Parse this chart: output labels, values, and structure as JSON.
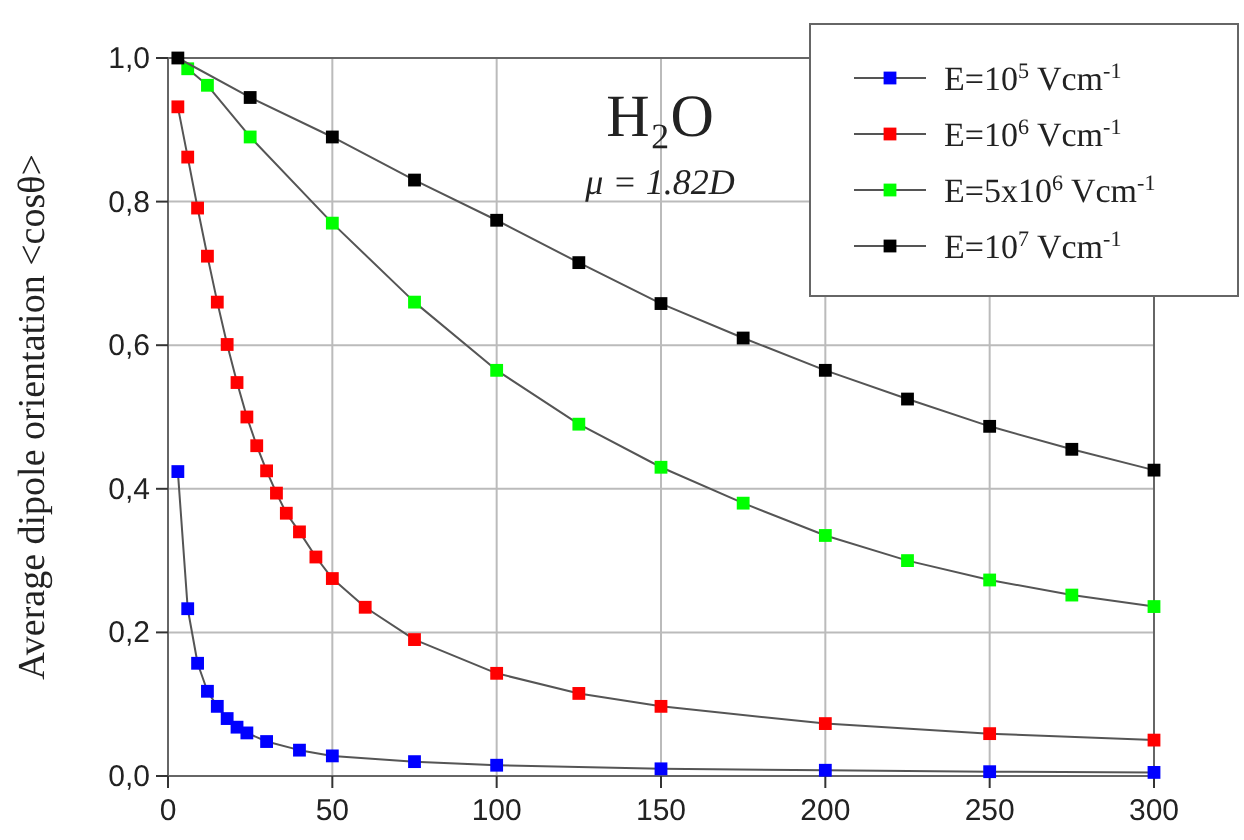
{
  "chart_data": {
    "type": "line",
    "title": "H₂O",
    "subtitle": "μ = 1.82D",
    "ylabel": "Average dipole orientation <cosθ>",
    "xlim": [
      0,
      300
    ],
    "ylim": [
      0,
      1.0
    ],
    "xticks": [
      0,
      50,
      100,
      150,
      200,
      250,
      300
    ],
    "yticks": [
      {
        "value": 0,
        "label": "0,0"
      },
      {
        "value": 0.2,
        "label": "0,2"
      },
      {
        "value": 0.4,
        "label": "0,4"
      },
      {
        "value": 0.6,
        "label": "0,6"
      },
      {
        "value": 0.8,
        "label": "0,8"
      },
      {
        "value": 1.0,
        "label": "1,0"
      }
    ],
    "grid": true,
    "legend": "top right",
    "marker": "square",
    "line_style": "solid",
    "series": [
      {
        "name": "E=10$^{5}$ Vcm$^{-1}$",
        "color": "#0000ff",
        "x": [
          3,
          6,
          9,
          12,
          15,
          18,
          21,
          24,
          30,
          40,
          50,
          75,
          100,
          150,
          200,
          250,
          300
        ],
        "values": [
          0.424,
          0.233,
          0.157,
          0.118,
          0.097,
          0.08,
          0.068,
          0.06,
          0.048,
          0.036,
          0.028,
          0.02,
          0.015,
          0.01,
          0.008,
          0.006,
          0.005
        ]
      },
      {
        "name": "E=10$^{6}$ Vcm$^{-1}$",
        "color": "#ff0000",
        "x": [
          3,
          6,
          9,
          12,
          15,
          18,
          21,
          24,
          27,
          30,
          33,
          36,
          40,
          45,
          50,
          60,
          75,
          100,
          125,
          150,
          200,
          250,
          300
        ],
        "values": [
          0.932,
          0.862,
          0.791,
          0.724,
          0.66,
          0.601,
          0.548,
          0.5,
          0.46,
          0.425,
          0.394,
          0.366,
          0.34,
          0.305,
          0.275,
          0.235,
          0.19,
          0.143,
          0.115,
          0.097,
          0.073,
          0.059,
          0.05
        ]
      },
      {
        "name": "E=5x10$^{6}$ Vcm$^{-1}$",
        "color": "#00ff00",
        "x": [
          6,
          12,
          25,
          50,
          75,
          100,
          125,
          150,
          175,
          200,
          225,
          250,
          275,
          300
        ],
        "values": [
          0.985,
          0.962,
          0.89,
          0.77,
          0.66,
          0.565,
          0.49,
          0.43,
          0.38,
          0.335,
          0.3,
          0.273,
          0.252,
          0.236
        ]
      },
      {
        "name": "E=10$^{7}$ Vcm$^{-1}$",
        "color": "#000000",
        "x": [
          3,
          25,
          50,
          75,
          100,
          125,
          150,
          175,
          200,
          225,
          250,
          275,
          300
        ],
        "values": [
          1.0,
          0.945,
          0.89,
          0.83,
          0.774,
          0.715,
          0.658,
          0.61,
          0.565,
          0.525,
          0.487,
          0.455,
          0.426
        ]
      }
    ]
  }
}
